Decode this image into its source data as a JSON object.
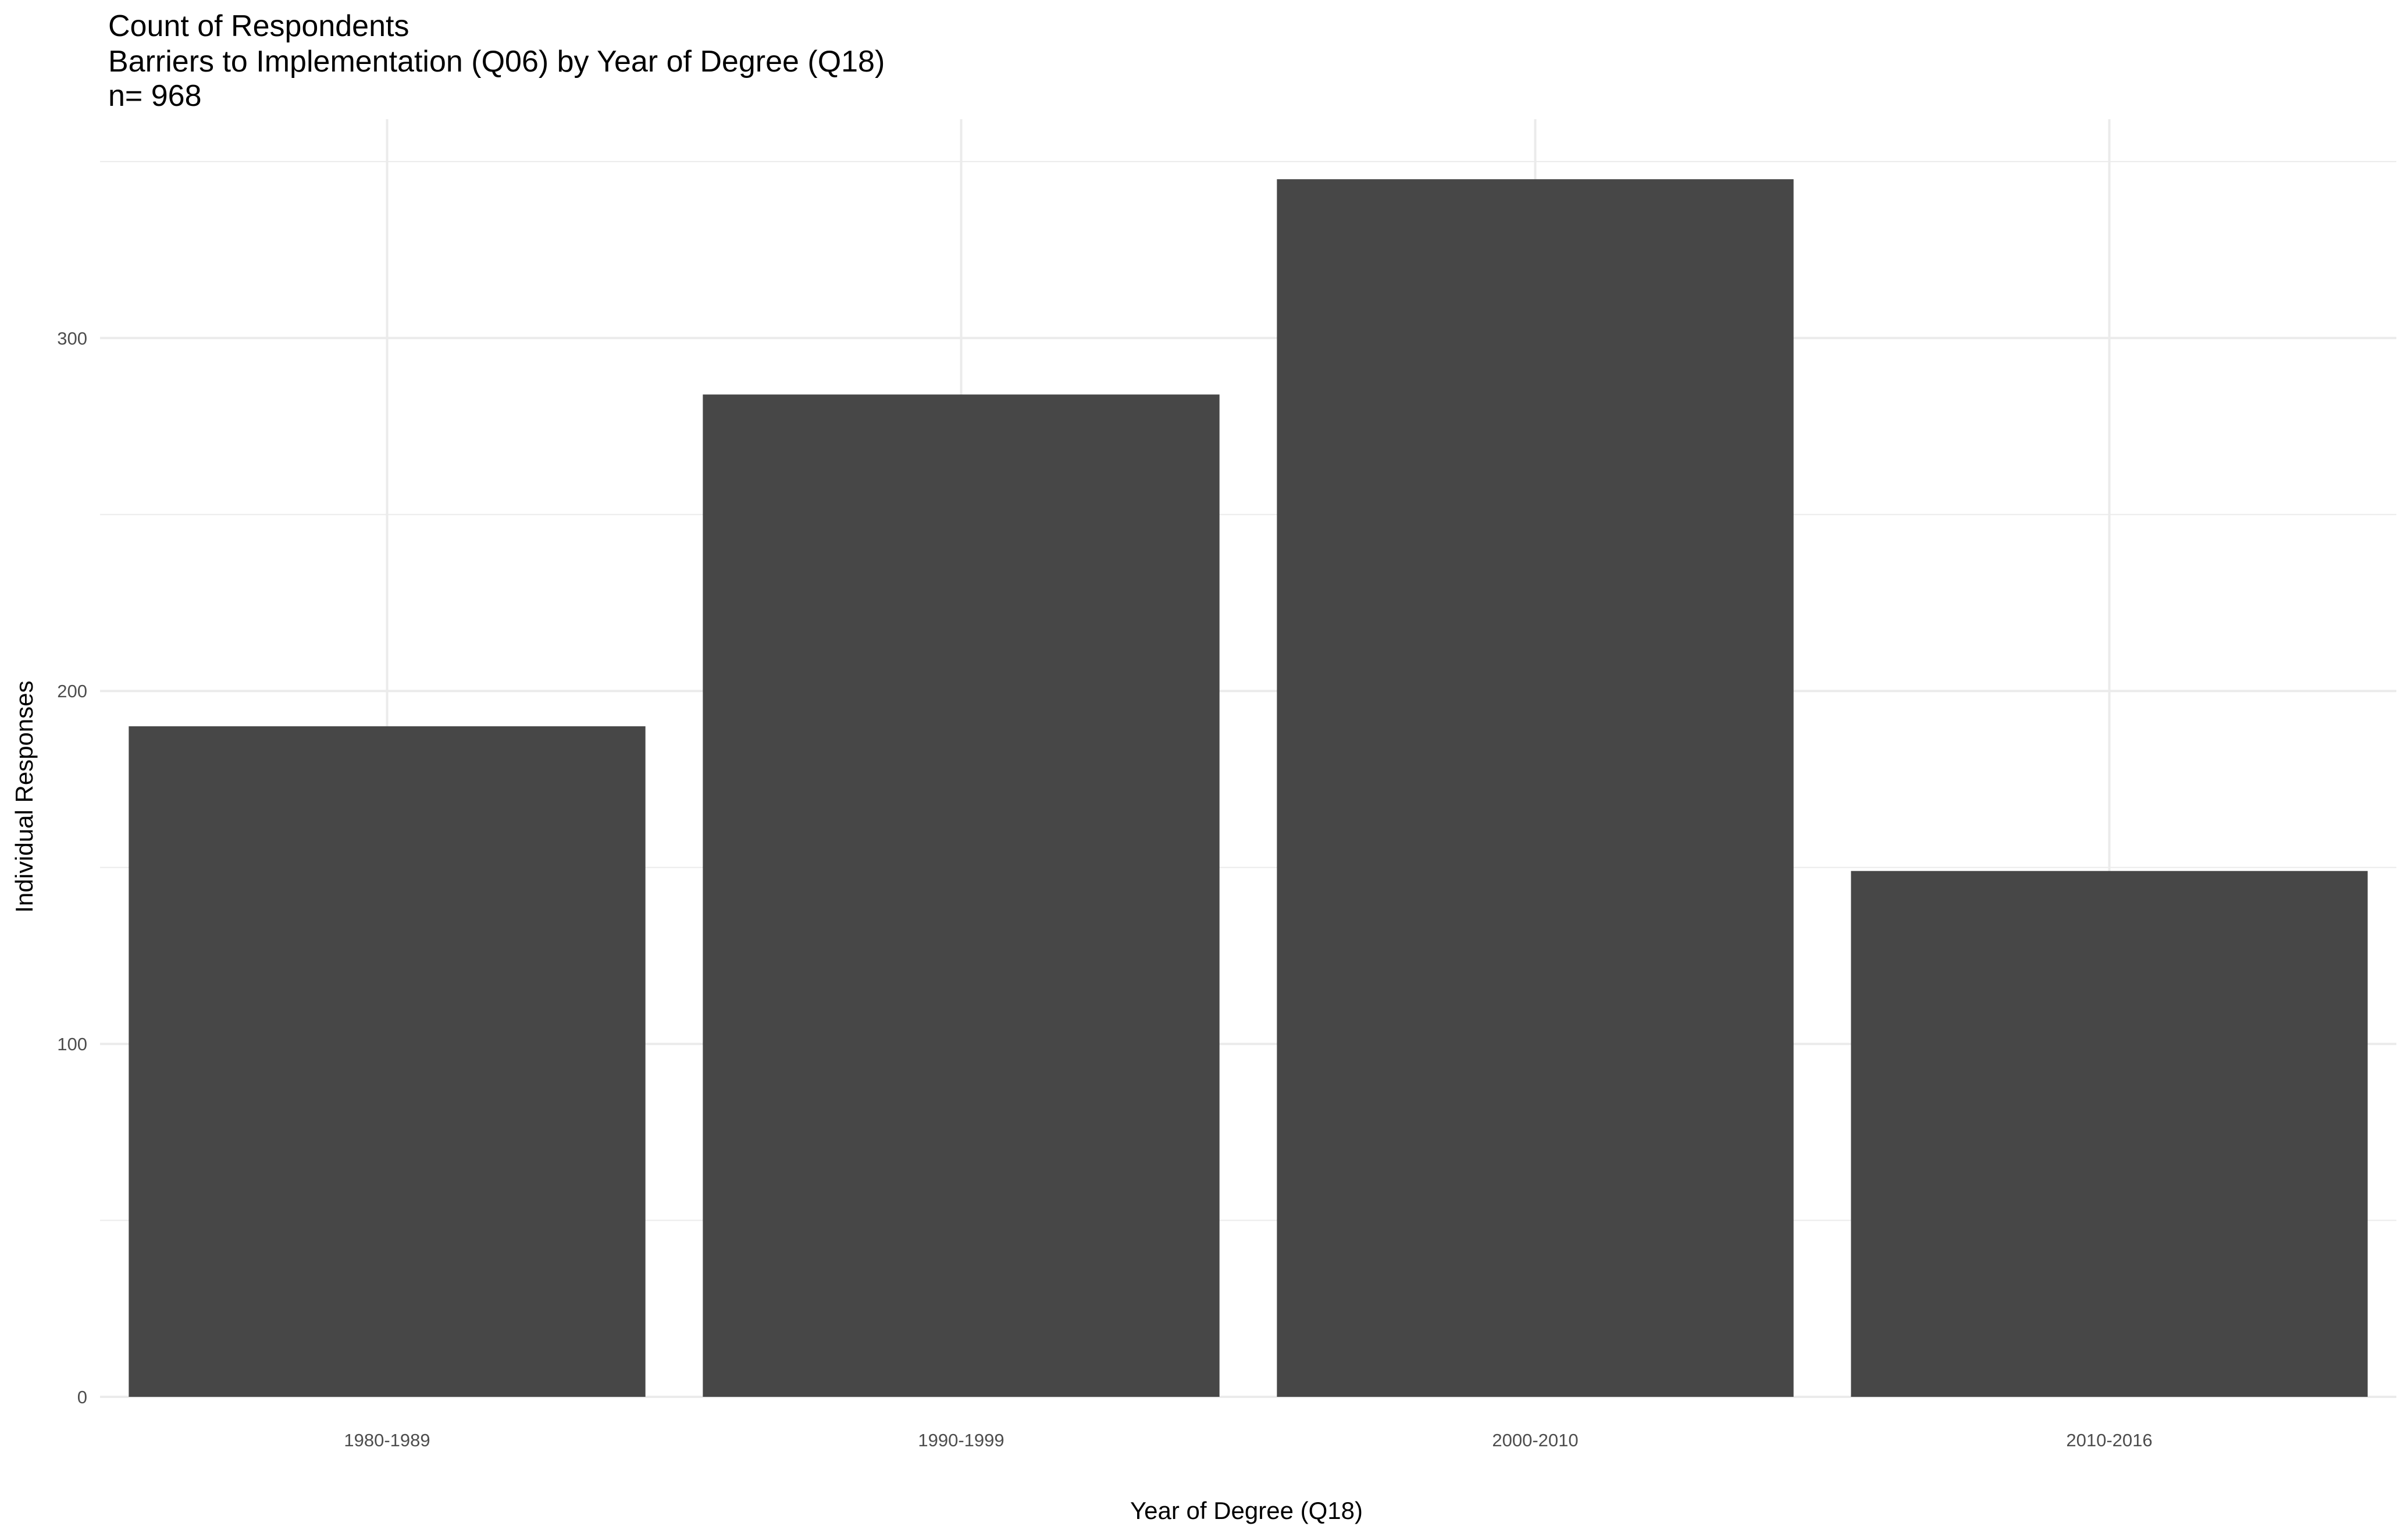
{
  "chart_data": {
    "type": "bar",
    "title": "Count of Respondents",
    "subtitle": "Barriers to Implementation (Q06) by Year of Degree (Q18)",
    "caption_n": "n= 968",
    "xlabel": "Year of Degree (Q18)",
    "ylabel": "Individual Responses",
    "categories": [
      "1980-1989",
      "1990-1999",
      "2000-2010",
      "2010-2016"
    ],
    "values": [
      190,
      284,
      345,
      149
    ],
    "ylim": [
      0,
      362
    ],
    "yticks": [
      0,
      100,
      200,
      300
    ],
    "ytick_labels": [
      "0",
      "100",
      "200",
      "300"
    ],
    "grid": true,
    "legend": "none",
    "bar_color": "#474747",
    "grid_color": "#ebebeb"
  }
}
